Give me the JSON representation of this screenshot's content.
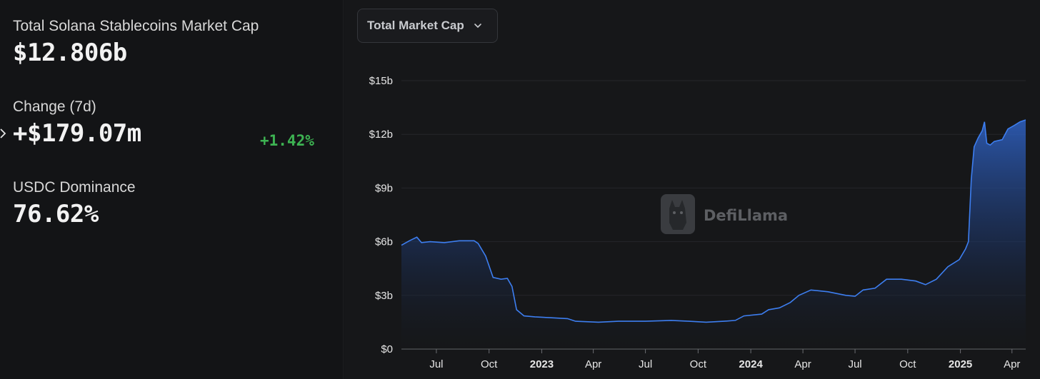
{
  "stats": {
    "market_cap_label": "Total Solana Stablecoins Market Cap",
    "market_cap_value": "$12.806b",
    "change_label": "Change (7d)",
    "change_value": "+$179.07m",
    "change_pct": "+1.42%",
    "dominance_label": "USDC Dominance",
    "dominance_value": "76.62%"
  },
  "dropdown": {
    "label": "Total Market Cap",
    "icon": "chevron-down-icon"
  },
  "watermark": {
    "text": "DefiLlama",
    "icon": "llama-icon"
  },
  "colors": {
    "accent_line": "#3d7ef0",
    "positive": "#3db352",
    "background": "#131416",
    "panel": "#161719"
  },
  "chart_data": {
    "type": "area",
    "series": [
      {
        "values": [
          [
            "2022-05-01",
            5.8
          ],
          [
            "2022-05-15",
            6.05
          ],
          [
            "2022-05-28",
            6.25
          ],
          [
            "2022-06-05",
            5.95
          ],
          [
            "2022-06-20",
            6.0
          ],
          [
            "2022-07-15",
            5.95
          ],
          [
            "2022-08-10",
            6.05
          ],
          [
            "2022-09-05",
            6.05
          ],
          [
            "2022-09-12",
            5.9
          ],
          [
            "2022-09-25",
            5.2
          ],
          [
            "2022-10-08",
            4.0
          ],
          [
            "2022-10-22",
            3.9
          ],
          [
            "2022-11-02",
            3.95
          ],
          [
            "2022-11-10",
            3.5
          ],
          [
            "2022-11-18",
            2.2
          ],
          [
            "2022-12-01",
            1.85
          ],
          [
            "2022-12-20",
            1.8
          ],
          [
            "2023-01-15",
            1.75
          ],
          [
            "2023-02-15",
            1.7
          ],
          [
            "2023-03-01",
            1.55
          ],
          [
            "2023-04-10",
            1.5
          ],
          [
            "2023-05-15",
            1.55
          ],
          [
            "2023-07-01",
            1.55
          ],
          [
            "2023-08-15",
            1.6
          ],
          [
            "2023-09-15",
            1.55
          ],
          [
            "2023-10-15",
            1.5
          ],
          [
            "2023-11-15",
            1.55
          ],
          [
            "2023-12-05",
            1.6
          ],
          [
            "2023-12-20",
            1.85
          ],
          [
            "2024-01-20",
            1.95
          ],
          [
            "2024-02-01",
            2.2
          ],
          [
            "2024-02-20",
            2.3
          ],
          [
            "2024-03-10",
            2.6
          ],
          [
            "2024-03-25",
            3.0
          ],
          [
            "2024-04-15",
            3.3
          ],
          [
            "2024-05-15",
            3.2
          ],
          [
            "2024-06-15",
            3.0
          ],
          [
            "2024-07-01",
            2.95
          ],
          [
            "2024-07-15",
            3.3
          ],
          [
            "2024-08-05",
            3.4
          ],
          [
            "2024-08-25",
            3.9
          ],
          [
            "2024-09-20",
            3.9
          ],
          [
            "2024-10-15",
            3.8
          ],
          [
            "2024-11-01",
            3.6
          ],
          [
            "2024-11-20",
            3.9
          ],
          [
            "2024-12-10",
            4.6
          ],
          [
            "2024-12-30",
            5.0
          ],
          [
            "2025-01-10",
            5.6
          ],
          [
            "2025-01-15",
            6.0
          ],
          [
            "2025-01-20",
            9.5
          ],
          [
            "2025-01-25",
            11.3
          ],
          [
            "2025-02-01",
            11.8
          ],
          [
            "2025-02-08",
            12.2
          ],
          [
            "2025-02-12",
            12.7
          ],
          [
            "2025-02-16",
            11.5
          ],
          [
            "2025-02-22",
            11.4
          ],
          [
            "2025-03-01",
            11.6
          ],
          [
            "2025-03-15",
            11.7
          ],
          [
            "2025-03-25",
            12.3
          ],
          [
            "2025-04-05",
            12.5
          ],
          [
            "2025-04-15",
            12.7
          ],
          [
            "2025-04-25",
            12.806
          ]
        ]
      }
    ],
    "x_range": [
      "2022-05-01",
      "2025-04-25"
    ],
    "x_ticks": [
      {
        "date": "2022-07-01",
        "label": "Jul",
        "bold": false
      },
      {
        "date": "2022-10-01",
        "label": "Oct",
        "bold": false
      },
      {
        "date": "2023-01-01",
        "label": "2023",
        "bold": true
      },
      {
        "date": "2023-04-01",
        "label": "Apr",
        "bold": false
      },
      {
        "date": "2023-07-01",
        "label": "Jul",
        "bold": false
      },
      {
        "date": "2023-10-01",
        "label": "Oct",
        "bold": false
      },
      {
        "date": "2024-01-01",
        "label": "2024",
        "bold": true
      },
      {
        "date": "2024-04-01",
        "label": "Apr",
        "bold": false
      },
      {
        "date": "2024-07-01",
        "label": "Jul",
        "bold": false
      },
      {
        "date": "2024-10-01",
        "label": "Oct",
        "bold": false
      },
      {
        "date": "2025-01-01",
        "label": "2025",
        "bold": true
      },
      {
        "date": "2025-04-01",
        "label": "Apr",
        "bold": false
      }
    ],
    "y_ticks": [
      {
        "value": 0,
        "label": "$0"
      },
      {
        "value": 3,
        "label": "$3b"
      },
      {
        "value": 6,
        "label": "$6b"
      },
      {
        "value": 9,
        "label": "$9b"
      },
      {
        "value": 12,
        "label": "$12b"
      },
      {
        "value": 15,
        "label": "$15b"
      }
    ],
    "ylim": [
      0,
      15
    ],
    "grid": true,
    "legend": "none"
  }
}
